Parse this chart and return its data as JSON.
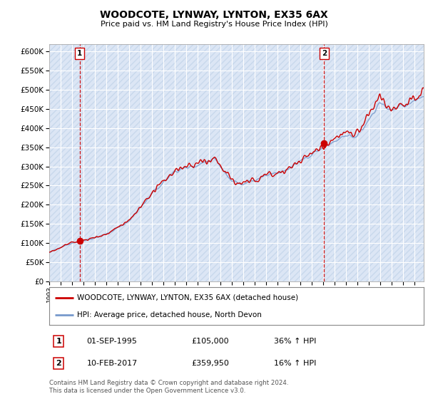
{
  "title": "WOODCOTE, LYNWAY, LYNTON, EX35 6AX",
  "subtitle": "Price paid vs. HM Land Registry's House Price Index (HPI)",
  "ylim": [
    0,
    620000
  ],
  "yticks": [
    0,
    50000,
    100000,
    150000,
    200000,
    250000,
    300000,
    350000,
    400000,
    450000,
    500000,
    550000,
    600000
  ],
  "xlim_start": 1993.0,
  "xlim_end": 2025.83,
  "property_color": "#cc0000",
  "hpi_color": "#7799cc",
  "sale1_year": 1995.67,
  "sale1_price": 105000,
  "sale2_year": 2017.1,
  "sale2_price": 359950,
  "legend_property": "WOODCOTE, LYNWAY, LYNTON, EX35 6AX (detached house)",
  "legend_hpi": "HPI: Average price, detached house, North Devon",
  "annotation1_label": "1",
  "annotation1_date": "01-SEP-1995",
  "annotation1_price": "£105,000",
  "annotation1_hpi": "36% ↑ HPI",
  "annotation2_label": "2",
  "annotation2_date": "10-FEB-2017",
  "annotation2_price": "£359,950",
  "annotation2_hpi": "16% ↑ HPI",
  "footer": "Contains HM Land Registry data © Crown copyright and database right 2024.\nThis data is licensed under the Open Government Licence v3.0.",
  "bg_color": "#ffffff",
  "plot_bg_color": "#dce6f5",
  "grid_color": "#ffffff",
  "hatch_color": "#c8d8ec"
}
